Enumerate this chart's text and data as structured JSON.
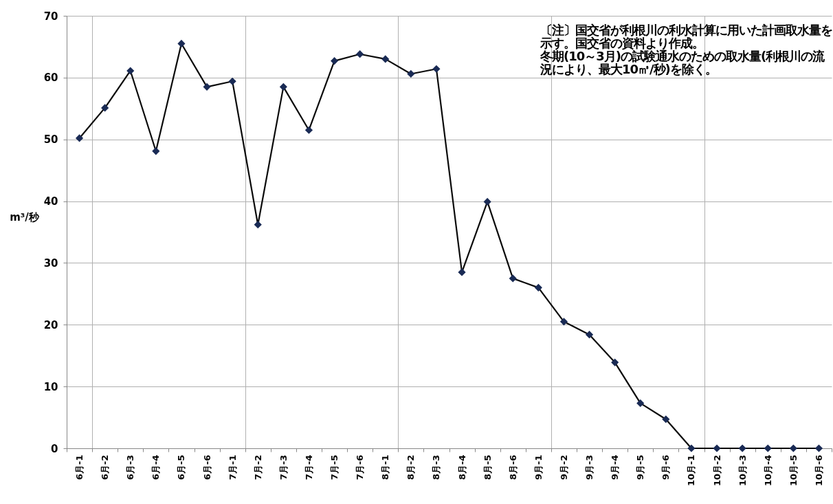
{
  "chart_data": {
    "type": "line",
    "ylabel": "m³/秒",
    "categories": [
      "6月-1",
      "6月-2",
      "6月-3",
      "6月-4",
      "6月-5",
      "6月-6",
      "7月-1",
      "7月-2",
      "7月-3",
      "7月-4",
      "7月-5",
      "7月-6",
      "8月-1",
      "8月-2",
      "8月-3",
      "8月-4",
      "8月-5",
      "8月-6",
      "9月-1",
      "9月-2",
      "9月-3",
      "9月-4",
      "9月-5",
      "9月-6",
      "10月-1",
      "10月-2",
      "10月-3",
      "10月-4",
      "10月-5",
      "10月-6"
    ],
    "series": [
      {
        "color": "#0a0a0a",
        "values": [
          50.2,
          55.1,
          61.1,
          48.1,
          65.5,
          58.5,
          59.4,
          36.2,
          58.5,
          51.5,
          62.7,
          63.8,
          63.0,
          60.6,
          61.4,
          28.5,
          39.9,
          27.5,
          26.0,
          20.5,
          18.4,
          13.9,
          7.3,
          4.7,
          0,
          0,
          0,
          0,
          0,
          0
        ]
      }
    ],
    "ylim": [
      0,
      70
    ],
    "yticks": [
      0,
      10,
      20,
      30,
      40,
      50,
      60,
      70
    ],
    "grid": true,
    "marker": "diamond",
    "line_style": "solid",
    "annotations": [
      "〔注〕国交省が利根川の利水計算に用いた計画取水量を示す。国交省の資料より作成。",
      "冬期(10～3月)の試験通水のための取水量(利根川の流況により、最大10㎥/秒)を除く。"
    ]
  }
}
